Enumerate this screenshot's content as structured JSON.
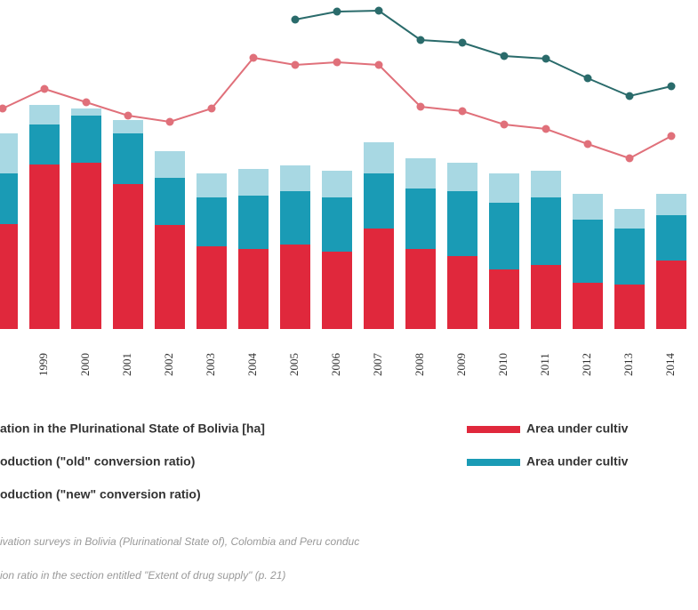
{
  "chart_data": {
    "type": "bar-line",
    "categories": [
      null,
      "1999",
      "2000",
      "2001",
      "2002",
      "2003",
      "2004",
      "2005",
      "2006",
      "2007",
      "2008",
      "2009",
      "2010",
      "2011",
      "2012",
      "2013",
      "2014"
    ],
    "ylim": [
      0,
      370
    ],
    "series": [
      {
        "name": "Area under cultiv",
        "kind": "bar",
        "color": "#e0283c",
        "values": [
          118,
          185,
          187,
          163,
          117,
          93,
          90,
          95,
          87,
          113,
          90,
          82,
          67,
          72,
          52,
          50,
          77
        ]
      },
      {
        "name": "Area under cultiv",
        "kind": "bar",
        "color": "#1a9bb5",
        "values": [
          57,
          45,
          53,
          57,
          53,
          55,
          60,
          60,
          61,
          62,
          68,
          73,
          75,
          76,
          71,
          63,
          51
        ]
      },
      {
        "name": "ation in the Plurinational State of Bolivia [ha]",
        "kind": "bar",
        "color": "#a8d8e3",
        "values": [
          45,
          22,
          8,
          15,
          30,
          27,
          30,
          29,
          30,
          35,
          34,
          32,
          33,
          30,
          29,
          22,
          24
        ]
      },
      {
        "name": "oduction (\"old\" conversion ratio)",
        "kind": "line",
        "color": "#e0707a",
        "values": [
          248,
          270,
          255,
          240,
          233,
          248,
          305,
          297,
          300,
          297,
          250,
          245,
          230,
          225,
          208,
          192,
          217
        ]
      },
      {
        "name": "oduction  (\"new\" conversion ratio)",
        "kind": "line",
        "color": "#2a6b6b",
        "values": [
          null,
          null,
          null,
          null,
          null,
          null,
          null,
          348,
          357,
          358,
          325,
          322,
          307,
          304,
          282,
          262,
          273
        ]
      }
    ],
    "notes": [
      "ivation surveys in Bolivia (Plurinational State of), Colombia and Peru conduc",
      "ion ratio in the section entitled \"Extent of drug supply\" (p. 21)"
    ]
  }
}
